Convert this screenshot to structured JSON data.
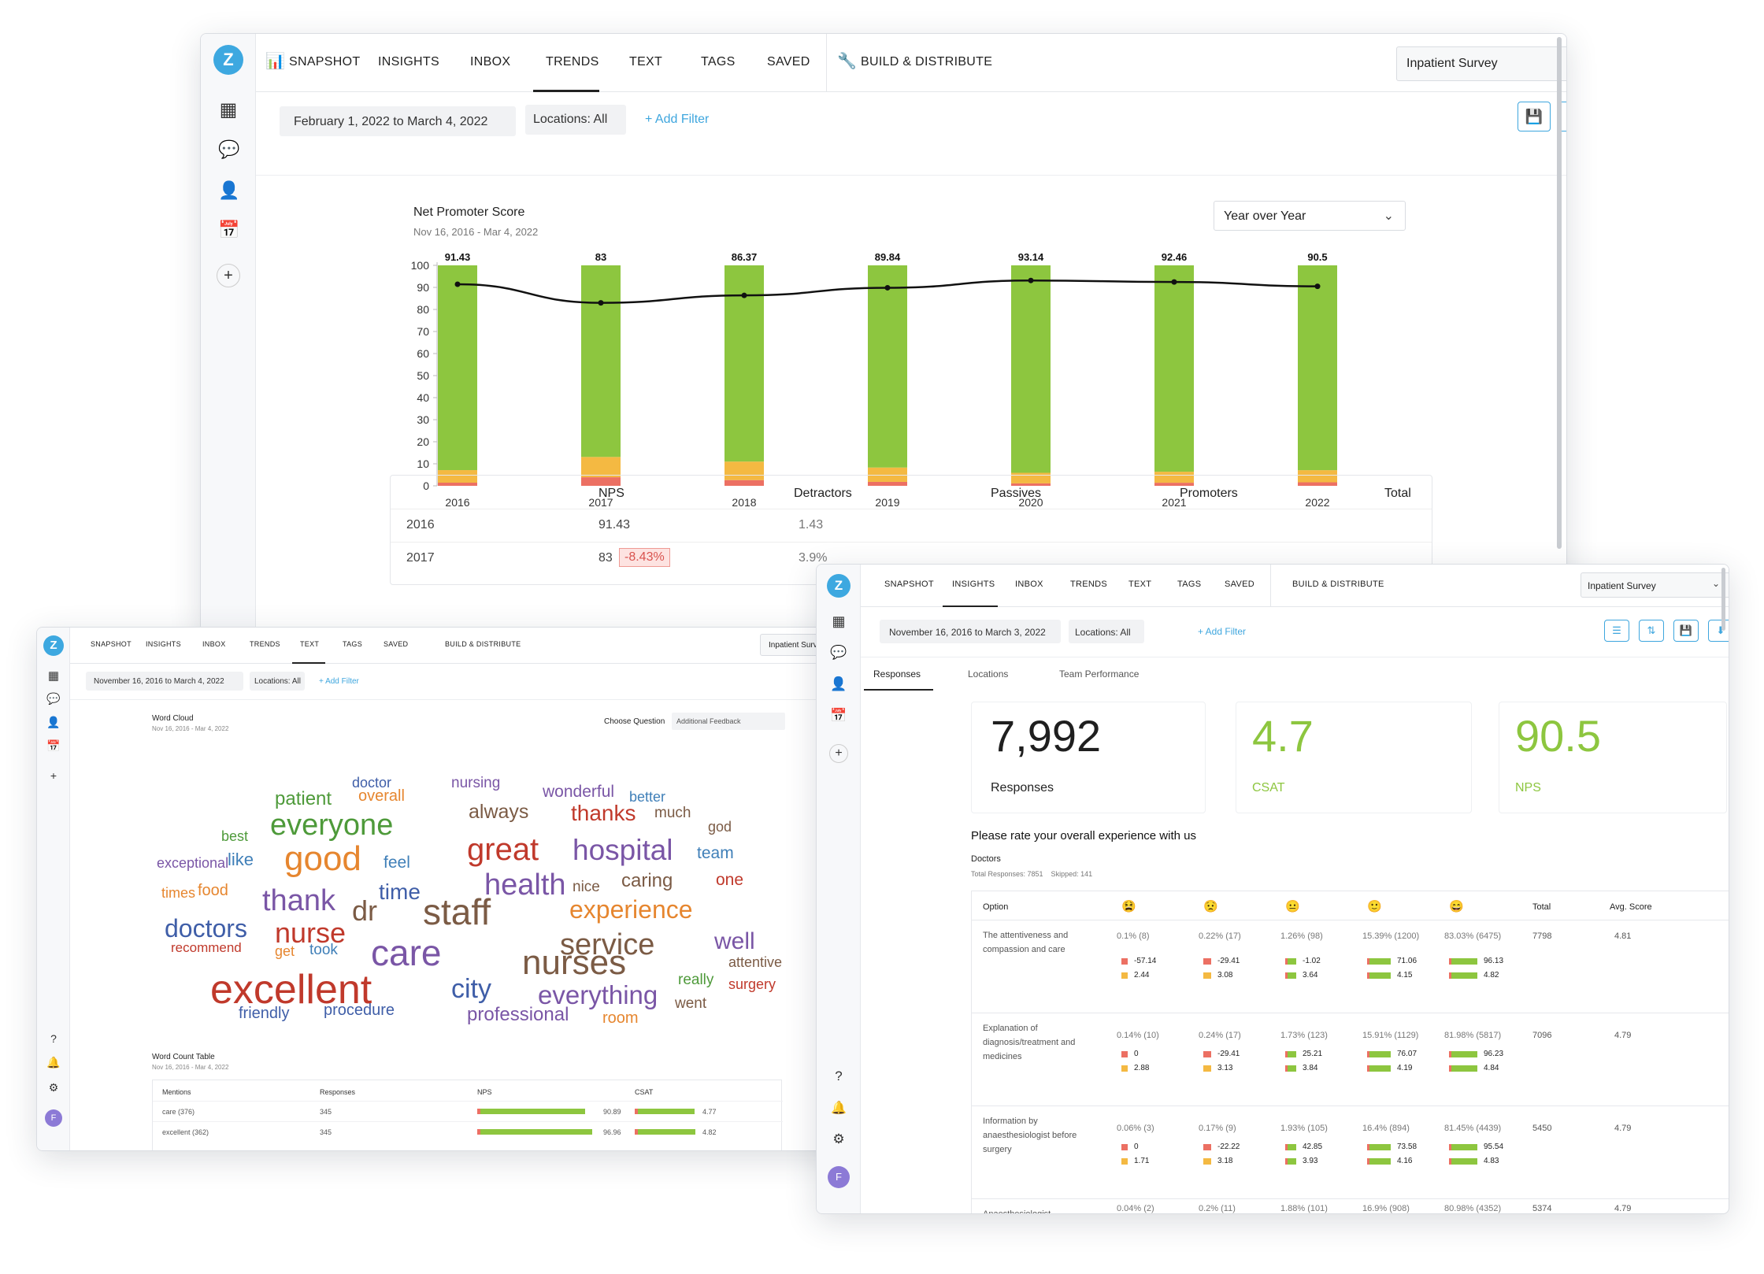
{
  "nav": {
    "snapshot": "SNAPSHOT",
    "insights": "INSIGHTS",
    "inbox": "INBOX",
    "trends": "TRENDS",
    "text": "TEXT",
    "tags": "TAGS",
    "saved": "SAVED",
    "build": "BUILD & DISTRIBUTE",
    "survey": "Inpatient Survey"
  },
  "trends_window": {
    "date_range": "February 1, 2022 to March 4, 2022",
    "locations": "Locations: All",
    "add_filter": "+ Add Filter",
    "chart_title": "Net Promoter Score",
    "chart_subtitle": "Nov 16, 2016 - Mar 4, 2022",
    "period_select": "Year over Year",
    "table": {
      "headers": [
        "NPS",
        "Detractors",
        "Passives",
        "Promoters",
        "Total"
      ],
      "rows": [
        {
          "year": "2016",
          "nps": "91.43",
          "change": "",
          "detractors": "1.43"
        },
        {
          "year": "2017",
          "nps": "83",
          "change": "-8.43%",
          "detractors": "3.9%"
        }
      ]
    }
  },
  "chart_data": {
    "type": "bar",
    "title": "Net Promoter Score",
    "subtitle": "Nov 16, 2016 - Mar 4, 2022",
    "categories": [
      "2016",
      "2017",
      "2018",
      "2019",
      "2020",
      "2021",
      "2022"
    ],
    "series": [
      {
        "name": "Detractors",
        "color": "#ec7063",
        "values": [
          1.43,
          3.9,
          2.6,
          1.8,
          1.1,
          1.4,
          1.6
        ]
      },
      {
        "name": "Passives",
        "color": "#f4b942",
        "values": [
          5.7,
          9.2,
          8.4,
          6.5,
          4.8,
          5.0,
          5.5
        ]
      },
      {
        "name": "Promoters",
        "color": "#8dc63f",
        "values": [
          92.87,
          86.9,
          89.0,
          91.7,
          94.1,
          93.6,
          92.9
        ]
      }
    ],
    "line": {
      "name": "NPS",
      "values": [
        91.43,
        83,
        86.37,
        89.84,
        93.14,
        92.46,
        90.5
      ]
    },
    "labels": [
      "91.43",
      "83",
      "86.37",
      "89.84",
      "93.14",
      "92.46",
      "90.5"
    ],
    "yticks": [
      "100",
      "90",
      "80",
      "70",
      "60",
      "50",
      "40",
      "30",
      "20",
      "10",
      "0"
    ],
    "ylim": [
      0,
      100
    ],
    "stacked": true
  },
  "text_window": {
    "date_range": "November 16, 2016 to March 4, 2022",
    "locations": "Locations: All",
    "add_filter": "+ Add Filter",
    "wc_title": "Word Cloud",
    "wc_subtitle": "Nov 16, 2016 - Mar 4, 2022",
    "choose_label": "Choose Question",
    "choose_value": "Additional Feedback",
    "words": [
      "doctor",
      "nursing",
      "wonderful",
      "patient",
      "overall",
      "better",
      "everyone",
      "always",
      "thanks",
      "much",
      "best",
      "god",
      "great",
      "hospital",
      "exceptional",
      "like",
      "good",
      "feel",
      "team",
      "health",
      "nice",
      "caring",
      "one",
      "times",
      "food",
      "time",
      "experience",
      "thank",
      "dr",
      "staff",
      "doctors",
      "nurse",
      "service",
      "well",
      "recommend",
      "get",
      "took",
      "attentive",
      "care",
      "nurses",
      "really",
      "surgery",
      "excellent",
      "city",
      "everything",
      "went",
      "friendly",
      "procedure",
      "professional",
      "room"
    ],
    "table_title": "Word Count Table",
    "table_subtitle": "Nov 16, 2016 - Mar 4, 2022",
    "table_headers": [
      "Mentions",
      "Responses",
      "NPS",
      "CSAT"
    ],
    "table_rows": [
      {
        "mention": "care (376)",
        "responses": "345",
        "nps": "90.89",
        "csat": "4.77",
        "nps_fill": 0.91,
        "csat_fill": 0.95
      },
      {
        "mention": "excellent (362)",
        "responses": "345",
        "nps": "96.96",
        "csat": "4.82",
        "nps_fill": 0.97,
        "csat_fill": 0.96
      }
    ]
  },
  "insights_window": {
    "date_range": "November 16, 2016 to March 3, 2022",
    "locations": "Locations: All",
    "add_filter": "+ Add Filter",
    "tabs": [
      "Responses",
      "Locations",
      "Team Performance"
    ],
    "kpis": [
      {
        "value": "7,992",
        "label": "Responses",
        "color": "#222222"
      },
      {
        "value": "4.7",
        "label": "CSAT",
        "color": "#8dc63f"
      },
      {
        "value": "90.5",
        "label": "NPS",
        "color": "#8dc63f"
      }
    ],
    "question": "Please rate your overall experience with us",
    "segment": "Doctors",
    "segment_meta": "Total Responses: 7851    Skipped: 141",
    "headers": {
      "option": "Option",
      "total": "Total",
      "avg": "Avg. Score"
    },
    "faces": [
      "😫",
      "😟",
      "😐",
      "🙂",
      "😄"
    ],
    "rows": [
      {
        "option": "The attentiveness and compassion and care",
        "pcts": [
          "0.1% (8)",
          "0.22% (17)",
          "1.26% (98)",
          "15.39% (1200)",
          "83.03% (6475)"
        ],
        "a": [
          "-57.14",
          "-29.41",
          "-1.02",
          "71.06",
          "96.13"
        ],
        "b": [
          "2.44",
          "3.08",
          "3.64",
          "4.15",
          "4.82"
        ],
        "total": "7798",
        "avg": "4.81"
      },
      {
        "option": "Explanation of diagnosis/treatment and medicines",
        "pcts": [
          "0.14% (10)",
          "0.24% (17)",
          "1.73% (123)",
          "15.91% (1129)",
          "81.98% (5817)"
        ],
        "a": [
          "0",
          "-29.41",
          "25.21",
          "76.07",
          "96.23"
        ],
        "b": [
          "2.88",
          "3.13",
          "3.84",
          "4.19",
          "4.84"
        ],
        "total": "7096",
        "avg": "4.79"
      },
      {
        "option": "Information by anaesthesiologist before surgery",
        "pcts": [
          "0.06% (3)",
          "0.17% (9)",
          "1.93% (105)",
          "16.4% (894)",
          "81.45% (4439)"
        ],
        "a": [
          "0",
          "-22.22",
          "42.85",
          "73.58",
          "95.54"
        ],
        "b": [
          "1.71",
          "3.18",
          "3.93",
          "4.16",
          "4.83"
        ],
        "total": "5450",
        "avg": "4.79"
      },
      {
        "option": "Anaesthesiologist explanation/answers to",
        "pcts": [
          "0.04% (2)",
          "0.2% (11)",
          "1.88% (101)",
          "16.9% (908)",
          "80.98% (4352)"
        ],
        "a": [],
        "b": [],
        "total": "5374",
        "avg": "4.79"
      }
    ]
  },
  "sidebar_avatar": "F",
  "colors": {
    "accent": "#3ea6de",
    "green": "#8dc63f",
    "yellow": "#f4b942",
    "red": "#ec7063"
  }
}
